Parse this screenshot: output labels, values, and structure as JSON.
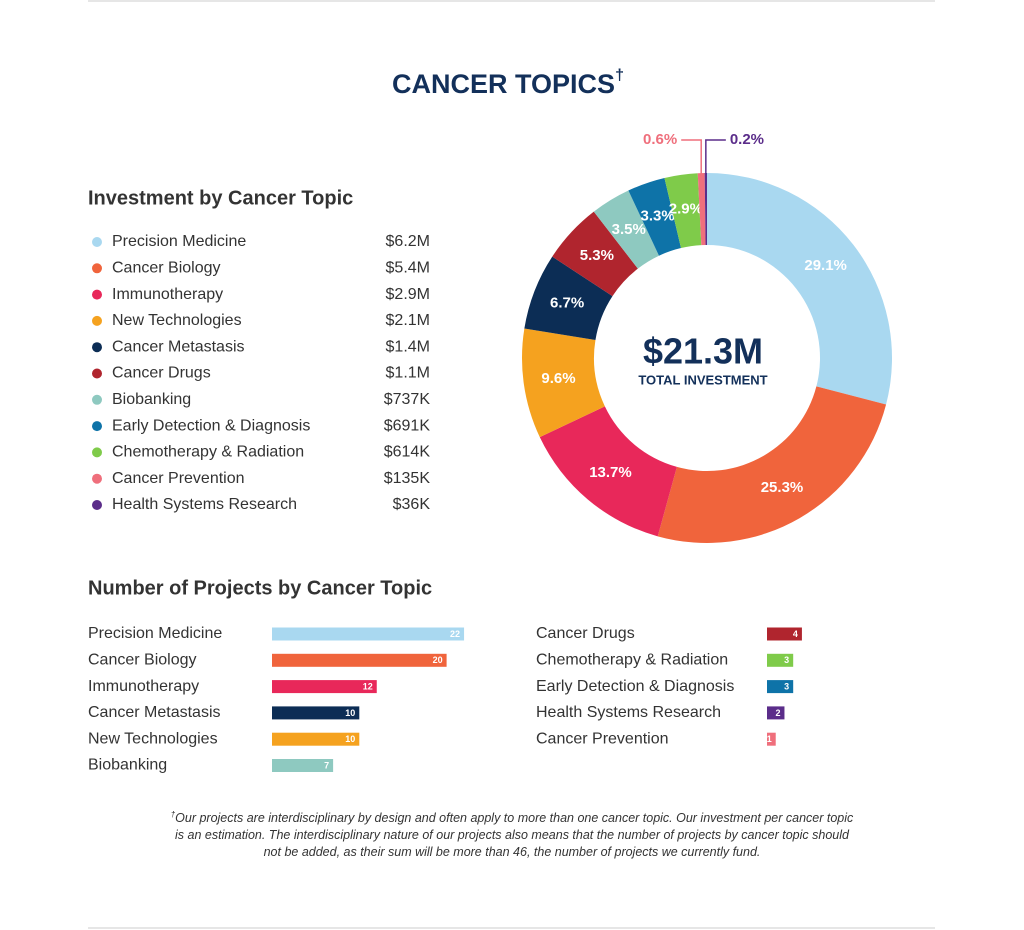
{
  "header": {
    "title": "CANCER TOPICS",
    "title_mark": "†"
  },
  "chart_data": [
    {
      "type": "pie",
      "title": "Investment by Cancer Topic",
      "categories": [
        "Precision Medicine",
        "Cancer Biology",
        "Immunotherapy",
        "New Technologies",
        "Cancer Metastasis",
        "Cancer Drugs",
        "Biobanking",
        "Early Detection & Diagnosis",
        "Chemotherapy & Radiation",
        "Cancer Prevention",
        "Health Systems Research"
      ],
      "values": [
        29.1,
        25.3,
        13.7,
        9.6,
        6.7,
        5.3,
        3.5,
        3.3,
        2.9,
        0.6,
        0.2
      ],
      "value_labels": [
        "29.1%",
        "25.3%",
        "13.7%",
        "9.6%",
        "6.7%",
        "5.3%",
        "3.5%",
        "3.3%",
        "2.9%",
        "0.6%",
        "0.2%"
      ],
      "colors": [
        "#a9d8f0",
        "#f0643c",
        "#e8285a",
        "#f5a21f",
        "#0c2d55",
        "#b0252e",
        "#8ec9c0",
        "#0e73a8",
        "#7fcb4a",
        "#ef6f7c",
        "#5b2d8a"
      ],
      "amounts": [
        "$6.2M",
        "$5.4M",
        "$2.9M",
        "$2.1M",
        "$1.4M",
        "$1.1M",
        "$737K",
        "$691K",
        "$614K",
        "$135K",
        "$36K"
      ],
      "center_value": "$21.3M",
      "center_label": "TOTAL INVESTMENT",
      "hole": true
    },
    {
      "type": "bar",
      "orientation": "horizontal",
      "title": "Number of Projects by Cancer Topic",
      "categories": [
        "Precision Medicine",
        "Cancer Biology",
        "Immunotherapy",
        "Cancer Metastasis",
        "New Technologies",
        "Biobanking",
        "Cancer Drugs",
        "Chemotherapy & Radiation",
        "Early Detection & Diagnosis",
        "Health Systems Research",
        "Cancer Prevention"
      ],
      "values": [
        22,
        20,
        12,
        10,
        10,
        7,
        4,
        3,
        3,
        2,
        1
      ],
      "colors": [
        "#a9d8f0",
        "#f0643c",
        "#e8285a",
        "#0c2d55",
        "#f5a21f",
        "#8ec9c0",
        "#b0252e",
        "#7fcb4a",
        "#0e73a8",
        "#5b2d8a",
        "#ef6f7c"
      ]
    }
  ],
  "footnote": {
    "mark": "†",
    "text": "Our projects are interdisciplinary by design and often apply to more than one cancer topic. Our investment per cancer topic is an estimation. The interdisciplinary nature of our projects also means that the number of projects by cancer topic should not be added, as their sum will be more than 46, the number of projects we currently fund."
  }
}
